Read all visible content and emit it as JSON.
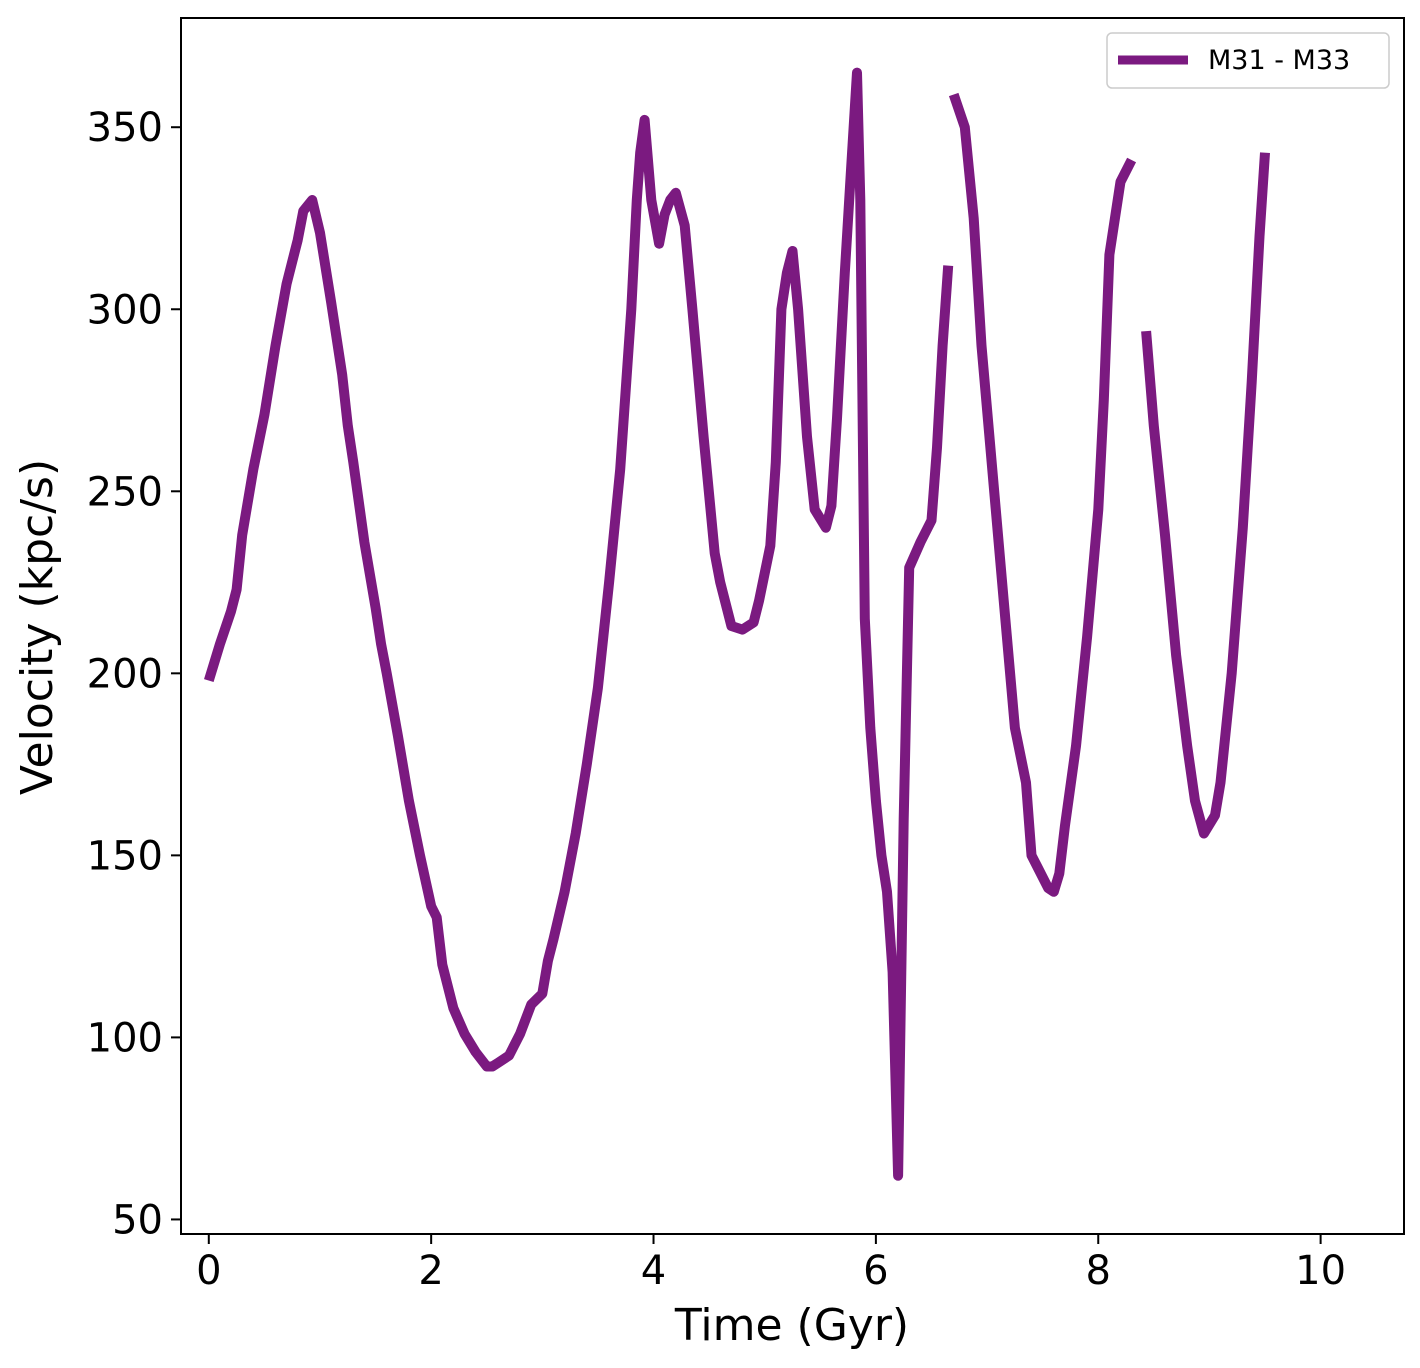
{
  "chart_data": {
    "type": "line",
    "xlabel": "Time (Gyr)",
    "ylabel": "Velocity (kpc/s)",
    "xlim": [
      -0.25,
      10.75
    ],
    "ylim": [
      46,
      380
    ],
    "xticks": [
      0,
      2,
      4,
      6,
      8,
      10
    ],
    "xtick_labels": [
      "0",
      "2",
      "4",
      "6",
      "8",
      "10"
    ],
    "yticks": [
      50,
      100,
      150,
      200,
      250,
      300,
      350
    ],
    "ytick_labels": [
      "50",
      "100",
      "150",
      "200",
      "250",
      "300",
      "350"
    ],
    "grid": false,
    "legend_position": "top-right",
    "series": [
      {
        "name": "M31 - M33",
        "color": "#7b1a80",
        "segments": [
          [
            [
              0.0,
              198
            ],
            [
              0.1,
              208
            ],
            [
              0.2,
              217
            ],
            [
              0.25,
              223
            ],
            [
              0.3,
              238
            ],
            [
              0.4,
              256
            ],
            [
              0.5,
              271
            ],
            [
              0.6,
              290
            ],
            [
              0.7,
              307
            ],
            [
              0.8,
              319
            ],
            [
              0.85,
              327
            ],
            [
              0.93,
              330
            ],
            [
              1.0,
              321
            ],
            [
              1.1,
              302
            ],
            [
              1.2,
              282
            ],
            [
              1.25,
              268
            ],
            [
              1.3,
              258
            ],
            [
              1.4,
              236
            ],
            [
              1.5,
              218
            ],
            [
              1.55,
              208
            ],
            [
              1.6,
              200
            ],
            [
              1.7,
              183
            ],
            [
              1.8,
              165
            ],
            [
              1.9,
              150
            ],
            [
              2.0,
              136
            ],
            [
              2.05,
              133
            ],
            [
              2.1,
              120
            ],
            [
              2.2,
              108
            ],
            [
              2.3,
              101
            ],
            [
              2.4,
              96
            ],
            [
              2.5,
              92
            ],
            [
              2.55,
              92
            ],
            [
              2.6,
              93
            ],
            [
              2.7,
              95
            ],
            [
              2.8,
              101
            ],
            [
              2.9,
              109
            ],
            [
              3.0,
              112
            ],
            [
              3.05,
              121
            ],
            [
              3.1,
              127
            ],
            [
              3.2,
              140
            ],
            [
              3.3,
              156
            ],
            [
              3.4,
              175
            ],
            [
              3.5,
              196
            ],
            [
              3.6,
              225
            ],
            [
              3.7,
              256
            ],
            [
              3.8,
              300
            ],
            [
              3.85,
              330
            ],
            [
              3.88,
              343
            ],
            [
              3.92,
              352
            ],
            [
              3.98,
              330
            ],
            [
              4.05,
              318
            ],
            [
              4.1,
              326
            ],
            [
              4.15,
              330
            ],
            [
              4.2,
              332
            ],
            [
              4.28,
              323
            ],
            [
              4.35,
              300
            ],
            [
              4.45,
              265
            ],
            [
              4.55,
              233
            ],
            [
              4.6,
              225
            ],
            [
              4.7,
              213
            ],
            [
              4.8,
              212
            ],
            [
              4.9,
              214
            ],
            [
              4.95,
              220
            ],
            [
              5.05,
              235
            ],
            [
              5.1,
              258
            ],
            [
              5.15,
              300
            ],
            [
              5.2,
              310
            ],
            [
              5.25,
              316
            ],
            [
              5.3,
              300
            ],
            [
              5.38,
              265
            ],
            [
              5.45,
              245
            ],
            [
              5.55,
              240
            ],
            [
              5.6,
              246
            ],
            [
              5.65,
              270
            ],
            [
              5.72,
              310
            ],
            [
              5.78,
              340
            ],
            [
              5.83,
              365
            ],
            [
              5.86,
              330
            ],
            [
              5.9,
              215
            ],
            [
              5.95,
              185
            ],
            [
              6.0,
              165
            ],
            [
              6.05,
              150
            ],
            [
              6.1,
              140
            ],
            [
              6.15,
              118
            ],
            [
              6.2,
              62
            ],
            [
              6.25,
              160
            ],
            [
              6.3,
              229
            ],
            [
              6.4,
              236
            ],
            [
              6.5,
              242
            ],
            [
              6.55,
              262
            ],
            [
              6.6,
              290
            ],
            [
              6.65,
              312
            ]
          ],
          [
            [
              6.7,
              359
            ],
            [
              6.8,
              350
            ],
            [
              6.88,
              325
            ],
            [
              6.95,
              290
            ],
            [
              7.05,
              255
            ],
            [
              7.15,
              220
            ],
            [
              7.25,
              185
            ],
            [
              7.35,
              170
            ],
            [
              7.4,
              150
            ],
            [
              7.45,
              147
            ],
            [
              7.55,
              141
            ],
            [
              7.6,
              140
            ],
            [
              7.65,
              145
            ],
            [
              7.7,
              158
            ],
            [
              7.8,
              180
            ],
            [
              7.9,
              210
            ],
            [
              8.0,
              245
            ],
            [
              8.05,
              275
            ],
            [
              8.1,
              315
            ],
            [
              8.2,
              335
            ],
            [
              8.3,
              341
            ]
          ],
          [
            [
              8.43,
              294
            ],
            [
              8.5,
              268
            ],
            [
              8.6,
              238
            ],
            [
              8.7,
              205
            ],
            [
              8.8,
              180
            ],
            [
              8.87,
              165
            ],
            [
              8.95,
              156
            ],
            [
              9.05,
              161
            ],
            [
              9.1,
              170
            ],
            [
              9.2,
              200
            ],
            [
              9.3,
              240
            ],
            [
              9.38,
              280
            ],
            [
              9.45,
              320
            ],
            [
              9.5,
              343
            ]
          ]
        ]
      }
    ]
  }
}
